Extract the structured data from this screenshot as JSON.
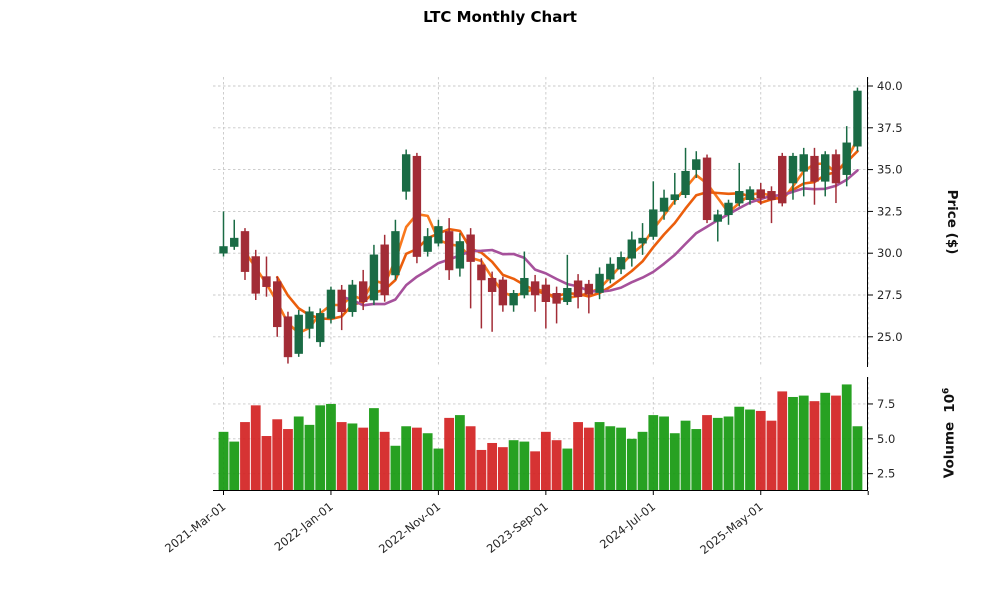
{
  "title": "LTC Monthly Chart",
  "price_axis": {
    "label": "Price ($)",
    "ticks": [
      "25.0",
      "27.5",
      "30.0",
      "32.5",
      "35.0",
      "37.5",
      "40.0"
    ]
  },
  "volume_axis": {
    "label": "Volume",
    "scale_prefix": "10",
    "scale_exp": "6",
    "ticks": [
      "2.5",
      "5.0",
      "7.5"
    ]
  },
  "x_axis": {
    "ticks": [
      {
        "index": 0,
        "label": "2021-Mar-01"
      },
      {
        "index": 10,
        "label": "2022-Jan-01"
      },
      {
        "index": 20,
        "label": "2022-Nov-01"
      },
      {
        "index": 30,
        "label": "2023-Sep-01"
      },
      {
        "index": 40,
        "label": "2024-Jul-01"
      },
      {
        "index": 50,
        "label": "2025-May-01"
      },
      {
        "index": 60,
        "label": ""
      }
    ]
  },
  "chart_data": {
    "type": "candlestick",
    "title": "LTC Monthly Chart",
    "ylabel": "Price ($)",
    "ylabel_lower": "Volume",
    "volume_unit": "1e6",
    "price_ylim": [
      23.4,
      40.6
    ],
    "grid": true,
    "moving_averages": [
      {
        "window": 3,
        "color": "#f9781d"
      },
      {
        "window": 6,
        "color": "#eb5e0c"
      },
      {
        "window": 12,
        "color": "#a6519b"
      }
    ],
    "style": {
      "up_color": "#1a6b45",
      "down_color": "#a22c36",
      "volume_up_color": "#15990f",
      "volume_down_color": "#d32222",
      "grid_color": "#c8c8c8",
      "axis_text_color": "#262626"
    },
    "candles": [
      {
        "date": "2021-03",
        "o": 30.0,
        "h": 32.5,
        "l": 29.8,
        "c": 30.4,
        "v": 5.5
      },
      {
        "date": "2021-04",
        "o": 30.4,
        "h": 32.0,
        "l": 30.2,
        "c": 30.9,
        "v": 4.8
      },
      {
        "date": "2021-05",
        "o": 31.3,
        "h": 31.5,
        "l": 28.4,
        "c": 28.9,
        "v": 6.2
      },
      {
        "date": "2021-06",
        "o": 29.8,
        "h": 30.2,
        "l": 27.2,
        "c": 27.6,
        "v": 7.4
      },
      {
        "date": "2021-07",
        "o": 28.6,
        "h": 29.8,
        "l": 27.4,
        "c": 28.0,
        "v": 5.2
      },
      {
        "date": "2021-08",
        "o": 28.3,
        "h": 28.6,
        "l": 25.0,
        "c": 25.6,
        "v": 6.4
      },
      {
        "date": "2021-09",
        "o": 26.2,
        "h": 26.5,
        "l": 23.4,
        "c": 23.8,
        "v": 5.7
      },
      {
        "date": "2021-10",
        "o": 24.0,
        "h": 26.6,
        "l": 23.8,
        "c": 26.3,
        "v": 6.6
      },
      {
        "date": "2021-11",
        "o": 25.5,
        "h": 26.8,
        "l": 24.9,
        "c": 26.5,
        "v": 6.0
      },
      {
        "date": "2021-12",
        "o": 24.7,
        "h": 26.7,
        "l": 24.4,
        "c": 26.4,
        "v": 7.4
      },
      {
        "date": "2022-01",
        "o": 26.1,
        "h": 28.0,
        "l": 25.8,
        "c": 27.8,
        "v": 7.5
      },
      {
        "date": "2022-02",
        "o": 27.8,
        "h": 28.1,
        "l": 25.4,
        "c": 26.5,
        "v": 6.2
      },
      {
        "date": "2022-03",
        "o": 26.5,
        "h": 28.4,
        "l": 26.2,
        "c": 28.1,
        "v": 6.1
      },
      {
        "date": "2022-04",
        "o": 28.3,
        "h": 29.0,
        "l": 26.6,
        "c": 27.1,
        "v": 5.8
      },
      {
        "date": "2022-05",
        "o": 27.2,
        "h": 30.5,
        "l": 26.9,
        "c": 29.9,
        "v": 7.2
      },
      {
        "date": "2022-06",
        "o": 30.5,
        "h": 31.1,
        "l": 27.1,
        "c": 27.5,
        "v": 5.5
      },
      {
        "date": "2022-07",
        "o": 28.7,
        "h": 32.0,
        "l": 28.4,
        "c": 31.3,
        "v": 4.5
      },
      {
        "date": "2022-08",
        "o": 33.7,
        "h": 36.2,
        "l": 33.2,
        "c": 35.9,
        "v": 5.9
      },
      {
        "date": "2022-09",
        "o": 35.8,
        "h": 36.0,
        "l": 29.4,
        "c": 29.8,
        "v": 5.8
      },
      {
        "date": "2022-10",
        "o": 30.1,
        "h": 31.5,
        "l": 29.8,
        "c": 31.0,
        "v": 5.4
      },
      {
        "date": "2022-11",
        "o": 30.6,
        "h": 32.0,
        "l": 30.4,
        "c": 31.6,
        "v": 4.3
      },
      {
        "date": "2022-12",
        "o": 31.3,
        "h": 32.1,
        "l": 28.4,
        "c": 29.0,
        "v": 6.5
      },
      {
        "date": "2023-01",
        "o": 29.1,
        "h": 31.2,
        "l": 28.6,
        "c": 30.7,
        "v": 6.7
      },
      {
        "date": "2023-02",
        "o": 31.1,
        "h": 31.5,
        "l": 26.7,
        "c": 29.5,
        "v": 5.9
      },
      {
        "date": "2023-03",
        "o": 29.3,
        "h": 29.7,
        "l": 25.5,
        "c": 28.4,
        "v": 4.2
      },
      {
        "date": "2023-04",
        "o": 28.5,
        "h": 28.9,
        "l": 25.3,
        "c": 27.7,
        "v": 4.7
      },
      {
        "date": "2023-05",
        "o": 28.4,
        "h": 28.6,
        "l": 26.5,
        "c": 26.9,
        "v": 4.4
      },
      {
        "date": "2023-06",
        "o": 26.9,
        "h": 27.8,
        "l": 26.5,
        "c": 27.6,
        "v": 4.9
      },
      {
        "date": "2023-07",
        "o": 27.5,
        "h": 30.1,
        "l": 27.3,
        "c": 28.5,
        "v": 4.8
      },
      {
        "date": "2023-08",
        "o": 28.3,
        "h": 28.7,
        "l": 26.5,
        "c": 27.5,
        "v": 4.1
      },
      {
        "date": "2023-09",
        "o": 28.1,
        "h": 28.5,
        "l": 25.5,
        "c": 27.1,
        "v": 5.5
      },
      {
        "date": "2023-10",
        "o": 27.6,
        "h": 28.0,
        "l": 25.8,
        "c": 27.0,
        "v": 4.9
      },
      {
        "date": "2023-11",
        "o": 27.1,
        "h": 29.9,
        "l": 26.9,
        "c": 27.9,
        "v": 4.3
      },
      {
        "date": "2023-12",
        "o": 28.35,
        "h": 28.75,
        "l": 26.7,
        "c": 27.4,
        "v": 6.2
      },
      {
        "date": "2024-01",
        "o": 28.15,
        "h": 28.4,
        "l": 26.4,
        "c": 27.55,
        "v": 5.8
      },
      {
        "date": "2024-02",
        "o": 27.65,
        "h": 29.15,
        "l": 27.25,
        "c": 28.75,
        "v": 6.2
      },
      {
        "date": "2024-03",
        "o": 28.45,
        "h": 29.75,
        "l": 28.2,
        "c": 29.35,
        "v": 5.9
      },
      {
        "date": "2024-04",
        "o": 29.05,
        "h": 30.1,
        "l": 28.75,
        "c": 29.75,
        "v": 5.8
      },
      {
        "date": "2024-05",
        "o": 29.7,
        "h": 31.3,
        "l": 29.2,
        "c": 30.8,
        "v": 5.0
      },
      {
        "date": "2024-06",
        "o": 30.6,
        "h": 31.8,
        "l": 29.9,
        "c": 30.9,
        "v": 5.5
      },
      {
        "date": "2024-07",
        "o": 31.0,
        "h": 34.3,
        "l": 30.8,
        "c": 32.6,
        "v": 6.7
      },
      {
        "date": "2024-08",
        "o": 32.5,
        "h": 33.8,
        "l": 32.0,
        "c": 33.3,
        "v": 6.6
      },
      {
        "date": "2024-09",
        "o": 33.2,
        "h": 34.8,
        "l": 32.9,
        "c": 33.5,
        "v": 5.4
      },
      {
        "date": "2024-10",
        "o": 33.5,
        "h": 36.3,
        "l": 33.3,
        "c": 34.9,
        "v": 6.3
      },
      {
        "date": "2024-11",
        "o": 35.0,
        "h": 36.1,
        "l": 34.5,
        "c": 35.6,
        "v": 5.7
      },
      {
        "date": "2024-12",
        "o": 35.7,
        "h": 35.9,
        "l": 31.8,
        "c": 32.0,
        "v": 6.7
      },
      {
        "date": "2025-01",
        "o": 31.9,
        "h": 32.6,
        "l": 30.7,
        "c": 32.3,
        "v": 6.5
      },
      {
        "date": "2025-02",
        "o": 32.3,
        "h": 33.2,
        "l": 31.7,
        "c": 33.0,
        "v": 6.6
      },
      {
        "date": "2025-03",
        "o": 33.0,
        "h": 35.4,
        "l": 32.8,
        "c": 33.7,
        "v": 7.3
      },
      {
        "date": "2025-04",
        "o": 33.2,
        "h": 34.0,
        "l": 32.9,
        "c": 33.8,
        "v": 7.1
      },
      {
        "date": "2025-05",
        "o": 33.8,
        "h": 34.2,
        "l": 32.9,
        "c": 33.3,
        "v": 7.0
      },
      {
        "date": "2025-06",
        "o": 33.7,
        "h": 34.0,
        "l": 31.8,
        "c": 33.2,
        "v": 6.3
      },
      {
        "date": "2025-07",
        "o": 35.8,
        "h": 36.0,
        "l": 32.8,
        "c": 33.0,
        "v": 8.4
      },
      {
        "date": "2025-08",
        "o": 34.2,
        "h": 36.0,
        "l": 33.2,
        "c": 35.8,
        "v": 8.0
      },
      {
        "date": "2025-09",
        "o": 34.9,
        "h": 36.3,
        "l": 33.4,
        "c": 35.9,
        "v": 8.1
      },
      {
        "date": "2025-10",
        "o": 35.8,
        "h": 36.3,
        "l": 32.9,
        "c": 34.3,
        "v": 7.7
      },
      {
        "date": "2025-11",
        "o": 34.3,
        "h": 36.1,
        "l": 33.4,
        "c": 35.9,
        "v": 8.3
      },
      {
        "date": "2025-12",
        "o": 35.9,
        "h": 36.2,
        "l": 33.0,
        "c": 34.2,
        "v": 8.1
      },
      {
        "date": "2026-01",
        "o": 34.7,
        "h": 37.6,
        "l": 34.0,
        "c": 36.6,
        "v": 8.9
      },
      {
        "date": "2026-02",
        "o": 36.4,
        "h": 39.9,
        "l": 36.1,
        "c": 39.7,
        "v": 5.9
      }
    ]
  }
}
